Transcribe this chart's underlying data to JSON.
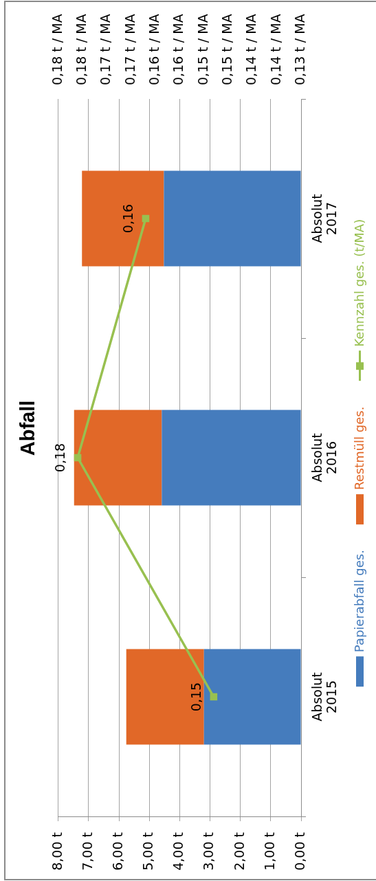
{
  "chart_data": {
    "type": "bar",
    "title": "Abfall",
    "orientation": "horizontal",
    "stacked": true,
    "categories": [
      "Absolut 2017",
      "Absolut 2016",
      "Absolut 2015"
    ],
    "series": [
      {
        "name": "Papierabfall ges.",
        "color": "#457cbd",
        "values": [
          4.52,
          4.59,
          3.2
        ]
      },
      {
        "name": "Restmüll ges.",
        "color": "#e16828",
        "values": [
          2.7,
          2.89,
          2.56
        ]
      },
      {
        "name": "Kennzahl ges. (t/MA)",
        "type": "line",
        "axis": "x2",
        "color": "#98c050",
        "values": [
          0.162,
          0.176,
          0.148
        ],
        "value_labels": [
          "0,16",
          "0,18",
          "0,15"
        ]
      }
    ],
    "xlim": [
      8,
      0
    ],
    "xticks": [
      {
        "value": 8,
        "label": "8,00 t"
      },
      {
        "value": 7,
        "label": "7,00 t"
      },
      {
        "value": 6,
        "label": "6,00 t"
      },
      {
        "value": 5,
        "label": "5,00 t"
      },
      {
        "value": 4,
        "label": "4,00 t"
      },
      {
        "value": 3,
        "label": "3,00 t"
      },
      {
        "value": 2,
        "label": "2,00 t"
      },
      {
        "value": 1,
        "label": "1,00 t"
      },
      {
        "value": 0,
        "label": "0,00 t"
      }
    ],
    "x2lim": [
      0.18,
      0.13
    ],
    "x2ticks": [
      {
        "value": 0.18,
        "label": "0,18 t / MA"
      },
      {
        "value": 0.175,
        "label": "0,18 t / MA"
      },
      {
        "value": 0.17,
        "label": "0,17 t / MA"
      },
      {
        "value": 0.165,
        "label": "0,17 t / MA"
      },
      {
        "value": 0.16,
        "label": "0,16 t / MA"
      },
      {
        "value": 0.155,
        "label": "0,16 t / MA"
      },
      {
        "value": 0.15,
        "label": "0,15 t / MA"
      },
      {
        "value": 0.145,
        "label": "0,15 t / MA"
      },
      {
        "value": 0.14,
        "label": "0,14 t / MA"
      },
      {
        "value": 0.135,
        "label": "0,14 t / MA"
      },
      {
        "value": 0.13,
        "label": "0,13 t / MA"
      }
    ],
    "grid": "x",
    "legend": "right",
    "marker": "square"
  }
}
